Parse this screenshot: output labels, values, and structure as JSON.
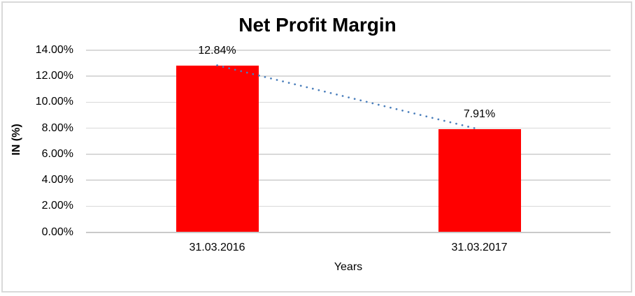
{
  "chart_data": {
    "type": "bar",
    "title": "Net Profit Margin",
    "categories": [
      "31.03.2016",
      "31.03.2017"
    ],
    "series": [
      {
        "name": "Net Profit Margin",
        "values": [
          12.84,
          7.91
        ]
      }
    ],
    "data_labels": [
      "12.84%",
      "7.91%"
    ],
    "xlabel": "Years",
    "ylabel": "IN (%)",
    "ylim": [
      0,
      14
    ],
    "ytick_step": 2,
    "ytick_labels_top_to_bottom": [
      "14.00%",
      "12.00%",
      "10.00%",
      "8.00%",
      "6.00%",
      "4.00%",
      "2.00%",
      "0.00%"
    ],
    "grid": true,
    "legend": "none",
    "trendline": {
      "style": "dotted",
      "connects": "bar-top-centers",
      "color": "#4A7EBB"
    },
    "colors": {
      "bar": "#FF0000",
      "gridline": "#D9D9D9",
      "axis_line": "#C9C9C9",
      "border": "#D9D9D9",
      "text": "#000000",
      "background": "#FFFFFF"
    }
  }
}
